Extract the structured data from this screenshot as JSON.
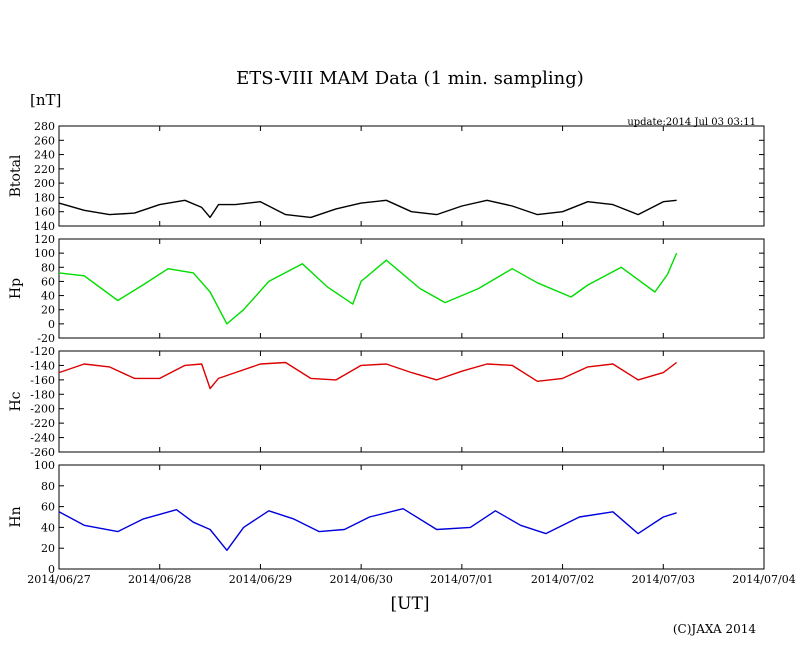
{
  "title": "ETS-VIII MAM Data (1 min. sampling)",
  "unit_label": "[nT]",
  "update_text": "update:2014 Jul 03 03:11",
  "x_axis_label": "[UT]",
  "copyright": "(C)JAXA 2014",
  "x_ticks": [
    "2014/06/27",
    "2014/06/28",
    "2014/06/29",
    "2014/06/30",
    "2014/07/01",
    "2014/07/02",
    "2014/07/03",
    "2014/07/04"
  ],
  "chart_data": [
    {
      "type": "line",
      "ylabel": "Btotal",
      "color": "#000000",
      "ylim": [
        140,
        280
      ],
      "yticks": [
        140,
        160,
        180,
        200,
        220,
        240,
        260,
        280
      ],
      "x": [
        "2014/06/27 00:00",
        "2014/06/27 06:00",
        "2014/06/27 12:00",
        "2014/06/27 18:00",
        "2014/06/28 00:00",
        "2014/06/28 06:00",
        "2014/06/28 10:00",
        "2014/06/28 12:00",
        "2014/06/28 14:00",
        "2014/06/28 18:00",
        "2014/06/29 00:00",
        "2014/06/29 06:00",
        "2014/06/29 12:00",
        "2014/06/29 18:00",
        "2014/06/30 00:00",
        "2014/06/30 06:00",
        "2014/06/30 12:00",
        "2014/06/30 18:00",
        "2014/07/01 00:00",
        "2014/07/01 06:00",
        "2014/07/01 12:00",
        "2014/07/01 18:00",
        "2014/07/02 00:00",
        "2014/07/02 06:00",
        "2014/07/02 12:00",
        "2014/07/02 18:00",
        "2014/07/03 00:00",
        "2014/07/03 03:11"
      ],
      "values": [
        172,
        162,
        156,
        158,
        170,
        176,
        166,
        152,
        170,
        170,
        174,
        156,
        152,
        164,
        172,
        176,
        160,
        156,
        168,
        176,
        168,
        156,
        160,
        174,
        170,
        156,
        174,
        176
      ]
    },
    {
      "type": "line",
      "ylabel": "Hp",
      "color": "#00dd00",
      "ylim": [
        -20,
        120
      ],
      "yticks": [
        -20,
        0,
        20,
        40,
        60,
        80,
        100,
        120
      ],
      "x": [
        "2014/06/27 00:00",
        "2014/06/27 06:00",
        "2014/06/27 14:00",
        "2014/06/27 20:00",
        "2014/06/28 02:00",
        "2014/06/28 08:00",
        "2014/06/28 12:00",
        "2014/06/28 16:00",
        "2014/06/28 20:00",
        "2014/06/29 02:00",
        "2014/06/29 10:00",
        "2014/06/29 16:00",
        "2014/06/29 22:00",
        "2014/06/30 00:00",
        "2014/06/30 06:00",
        "2014/06/30 14:00",
        "2014/06/30 20:00",
        "2014/07/01 04:00",
        "2014/07/01 12:00",
        "2014/07/01 18:00",
        "2014/07/02 02:00",
        "2014/07/02 06:00",
        "2014/07/02 14:00",
        "2014/07/02 22:00",
        "2014/07/03 01:00",
        "2014/07/03 03:11"
      ],
      "values": [
        72,
        68,
        33,
        55,
        78,
        72,
        45,
        0,
        20,
        60,
        85,
        52,
        28,
        60,
        90,
        50,
        30,
        50,
        78,
        58,
        38,
        55,
        80,
        45,
        70,
        100
      ]
    },
    {
      "type": "line",
      "ylabel": "Hc",
      "color": "#dd0000",
      "ylim": [
        -260,
        -120
      ],
      "yticks": [
        -260,
        -240,
        -220,
        -200,
        -180,
        -160,
        -140,
        -120
      ],
      "x": [
        "2014/06/27 00:00",
        "2014/06/27 06:00",
        "2014/06/27 12:00",
        "2014/06/27 18:00",
        "2014/06/28 00:00",
        "2014/06/28 06:00",
        "2014/06/28 10:00",
        "2014/06/28 12:00",
        "2014/06/28 14:00",
        "2014/06/28 18:00",
        "2014/06/29 00:00",
        "2014/06/29 06:00",
        "2014/06/29 12:00",
        "2014/06/29 18:00",
        "2014/06/30 00:00",
        "2014/06/30 06:00",
        "2014/06/30 12:00",
        "2014/06/30 18:00",
        "2014/07/01 00:00",
        "2014/07/01 06:00",
        "2014/07/01 12:00",
        "2014/07/01 18:00",
        "2014/07/02 00:00",
        "2014/07/02 06:00",
        "2014/07/02 12:00",
        "2014/07/02 18:00",
        "2014/07/03 00:00",
        "2014/07/03 03:11"
      ],
      "values": [
        -150,
        -138,
        -142,
        -158,
        -158,
        -140,
        -138,
        -172,
        -158,
        -150,
        -138,
        -136,
        -158,
        -160,
        -140,
        -138,
        -150,
        -160,
        -148,
        -138,
        -140,
        -162,
        -158,
        -142,
        -138,
        -160,
        -150,
        -136
      ]
    },
    {
      "type": "line",
      "ylabel": "Hn",
      "color": "#0000dd",
      "ylim": [
        0,
        100
      ],
      "yticks": [
        0,
        20,
        40,
        60,
        80,
        100
      ],
      "x": [
        "2014/06/27 00:00",
        "2014/06/27 06:00",
        "2014/06/27 14:00",
        "2014/06/27 20:00",
        "2014/06/28 04:00",
        "2014/06/28 08:00",
        "2014/06/28 12:00",
        "2014/06/28 16:00",
        "2014/06/28 20:00",
        "2014/06/29 02:00",
        "2014/06/29 08:00",
        "2014/06/29 14:00",
        "2014/06/29 20:00",
        "2014/06/30 02:00",
        "2014/06/30 10:00",
        "2014/06/30 18:00",
        "2014/07/01 02:00",
        "2014/07/01 08:00",
        "2014/07/01 14:00",
        "2014/07/01 20:00",
        "2014/07/02 04:00",
        "2014/07/02 12:00",
        "2014/07/02 18:00",
        "2014/07/03 00:00",
        "2014/07/03 03:11"
      ],
      "values": [
        55,
        42,
        36,
        48,
        57,
        45,
        38,
        18,
        40,
        56,
        48,
        36,
        38,
        50,
        58,
        38,
        40,
        56,
        42,
        34,
        50,
        55,
        34,
        50,
        54
      ]
    }
  ]
}
